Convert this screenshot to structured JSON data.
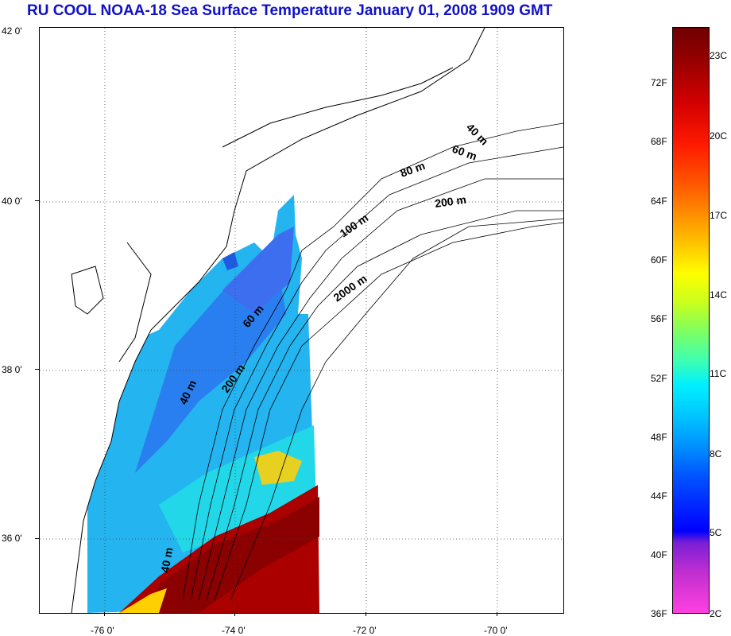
{
  "title": "RU COOL  NOAA-18 Sea Surface Temperature January 01, 2008 1909 GMT",
  "map": {
    "lat_labels": [
      "42 0'",
      "40 0'",
      "38 0'",
      "36 0'"
    ],
    "lon_labels": [
      "-76 0'",
      "-74 0'",
      "-72 0'",
      "-70 0'"
    ],
    "depth_contours": [
      "40 m",
      "60 m",
      "80 m",
      "100 m",
      "200 m",
      "2000 m",
      "60 m",
      "200 m",
      "40 m",
      "40 m"
    ]
  },
  "colorbar": {
    "fahrenheit": [
      "72F",
      "68F",
      "64F",
      "60F",
      "56F",
      "52F",
      "48F",
      "44F",
      "40F",
      "36F"
    ],
    "celsius": [
      "23C",
      "20C",
      "17C",
      "14C",
      "11C",
      "8C",
      "5C",
      "2C"
    ],
    "colors": {
      "warm": "#8b0000",
      "mid": "#ffff00",
      "cool": "#00e0ff",
      "cold": "#0000ff",
      "min": "#ff40e0"
    }
  },
  "chart_data": {
    "type": "heatmap",
    "title": "RU COOL  NOAA-18 Sea Surface Temperature January 01, 2008 1909 GMT",
    "xlabel": "",
    "ylabel": "",
    "x_range_deg": [
      -77,
      -69
    ],
    "y_range_deg": [
      35,
      42
    ],
    "colorbar_range_F": [
      36,
      75
    ],
    "colorbar_range_C": [
      2,
      24
    ]
  }
}
